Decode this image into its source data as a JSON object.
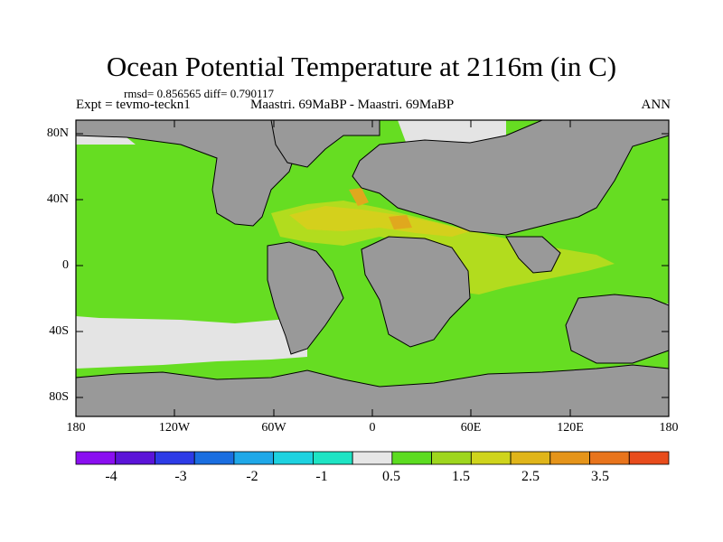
{
  "title": "Ocean Potential Temperature at 2116m (in C)",
  "stats": "rmsd= 0.856565  diff= 0.790117",
  "expt": "Expt = tevmo-teckn1",
  "cases": "Maastri.  69MaBP - Maastri.  69MaBP",
  "season": "ANN",
  "lat_labels": [
    "80N",
    "40N",
    "0",
    "40S",
    "80S"
  ],
  "lon_labels": [
    "180",
    "120W",
    "60W",
    "0",
    "60E",
    "120E",
    "180"
  ],
  "colorbar": {
    "colors": [
      "#8a0ff0",
      "#5b14d8",
      "#2d3be6",
      "#1a6ee0",
      "#1fa8e8",
      "#1ed2e0",
      "#1ee4c4",
      "#e6e6e6",
      "#5cdc20",
      "#9ed61e",
      "#cfd41c",
      "#e0b51a",
      "#e5941a",
      "#e8741c",
      "#e84c1c"
    ],
    "labels": [
      "-4",
      "-3",
      "-2",
      "-1",
      "0.5",
      "1.5",
      "2.5",
      "3.5"
    ]
  },
  "colors": {
    "land": "#999999",
    "ocean": "#66dd22",
    "warm1": "#b2dc1e",
    "warm2": "#d4d01c",
    "warm3": "#e0a81e",
    "cold": "#e4e4e4"
  }
}
